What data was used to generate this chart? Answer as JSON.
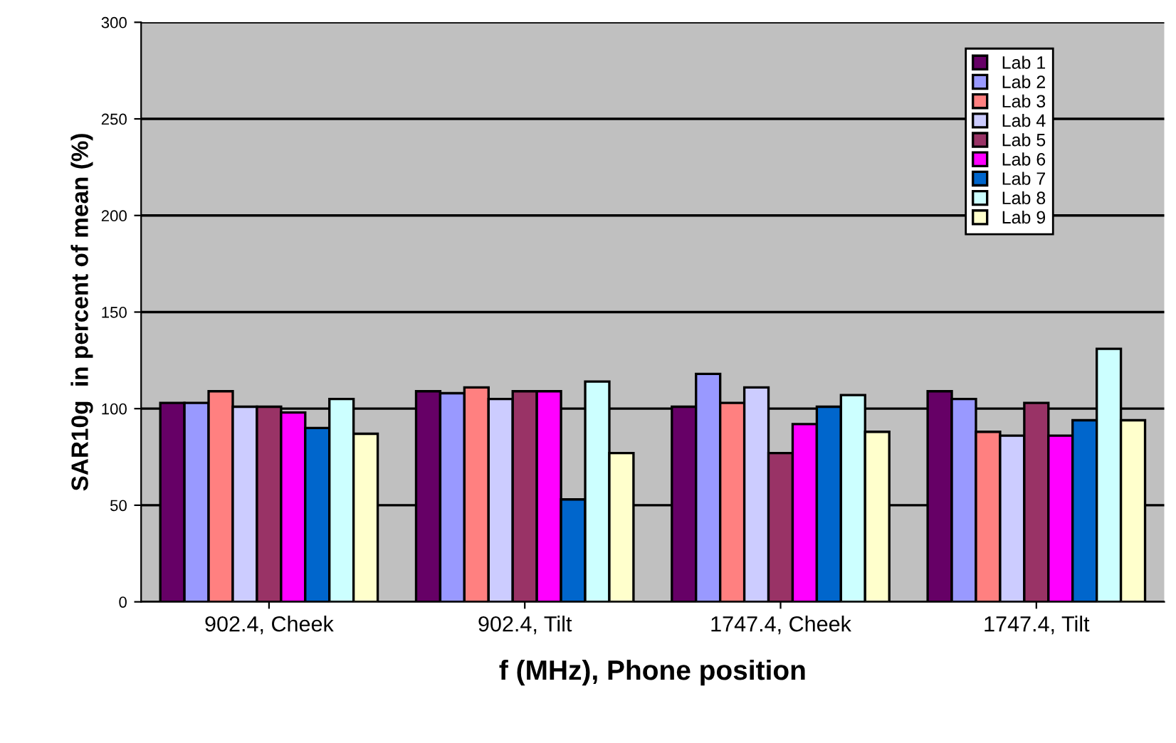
{
  "chart_data": {
    "type": "bar",
    "xlabel": "f (MHz), Phone position",
    "ylabel": "SAR10g  in percent of mean (%)",
    "categories": [
      "902.4, Cheek",
      "902.4, Tilt",
      "1747.4, Cheek",
      "1747.4, Tilt"
    ],
    "series": [
      {
        "name": "Lab 1",
        "color": "#660066",
        "values": [
          103,
          109,
          101,
          109
        ]
      },
      {
        "name": "Lab 2",
        "color": "#9999ff",
        "values": [
          103,
          108,
          118,
          105
        ]
      },
      {
        "name": "Lab 3",
        "color": "#ff8080",
        "values": [
          109,
          111,
          103,
          88
        ]
      },
      {
        "name": "Lab 4",
        "color": "#ccccff",
        "values": [
          101,
          105,
          111,
          86
        ]
      },
      {
        "name": "Lab 5",
        "color": "#993366",
        "values": [
          101,
          109,
          77,
          103
        ]
      },
      {
        "name": "Lab 6",
        "color": "#ff00ff",
        "values": [
          98,
          109,
          92,
          86
        ]
      },
      {
        "name": "Lab 7",
        "color": "#0066cc",
        "values": [
          90,
          53,
          101,
          94
        ]
      },
      {
        "name": "Lab 8",
        "color": "#ccffff",
        "values": [
          105,
          114,
          107,
          131
        ]
      },
      {
        "name": "Lab 9",
        "color": "#ffffcc",
        "values": [
          87,
          77,
          88,
          94
        ]
      }
    ],
    "ylim": [
      0,
      300
    ],
    "yticks": [
      0,
      50,
      100,
      150,
      200,
      250,
      300
    ],
    "grid": "y",
    "legend": "top right"
  }
}
